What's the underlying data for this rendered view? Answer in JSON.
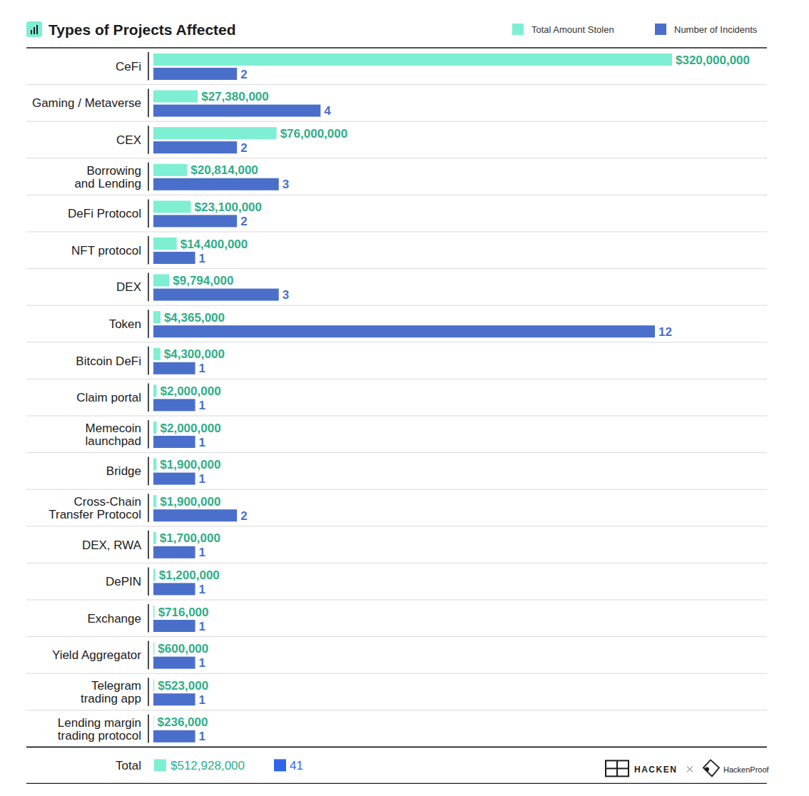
{
  "chart_data": {
    "type": "bar",
    "orientation": "horizontal",
    "title": "Types of Projects Affected",
    "categories": [
      "CeFi",
      "Gaming / Metaverse",
      "CEX",
      "Borrowing\nand Lending",
      "DeFi Protocol",
      "NFT protocol",
      "DEX",
      "Token",
      "Bitcoin DeFi",
      "Claim portal",
      "Memecoin\nlaunchpad",
      "Bridge",
      "Cross-Chain\nTransfer Protocol",
      "DEX, RWA",
      "DePIN",
      "Exchange",
      "Yield Aggregator",
      "Telegram\ntrading app",
      "Lending margin\ntrading protocol"
    ],
    "series": [
      {
        "name": "Total Amount Stolen",
        "color": "#7eefd2",
        "values": [
          320000000,
          27380000,
          76000000,
          20814000,
          23100000,
          14400000,
          9794000,
          4365000,
          4300000,
          2000000,
          2000000,
          1900000,
          1900000,
          1700000,
          1200000,
          716000,
          600000,
          523000,
          236000
        ],
        "value_labels": [
          "$320,000,000",
          "$27,380,000",
          "$76,000,000",
          "$20,814,000",
          "$23,100,000",
          "$14,400,000",
          "$9,794,000",
          "$4,365,000",
          "$4,300,000",
          "$2,000,000",
          "$2,000,000",
          "$1,900,000",
          "$1,900,000",
          "$1,700,000",
          "$1,200,000",
          "$716,000",
          "$600,000",
          "$523,000",
          "$236,000"
        ]
      },
      {
        "name": "Number of Incidents",
        "color": "#4a6fcb",
        "axis": "y2",
        "values": [
          2,
          4,
          2,
          3,
          2,
          1,
          3,
          12,
          1,
          1,
          1,
          1,
          2,
          1,
          1,
          1,
          1,
          1,
          1
        ]
      }
    ],
    "ylim": [
      0,
      320000000
    ],
    "y2lim": [
      0,
      12
    ],
    "data_labels": true,
    "legend": "top-right",
    "tick_labels": "x"
  },
  "footer": {
    "total_label": "Total",
    "total_amount": 512928000,
    "total_amount_label": "$512,928,000",
    "total_incidents": 41,
    "logos": [
      "HACKEN",
      "HackenProof"
    ]
  }
}
